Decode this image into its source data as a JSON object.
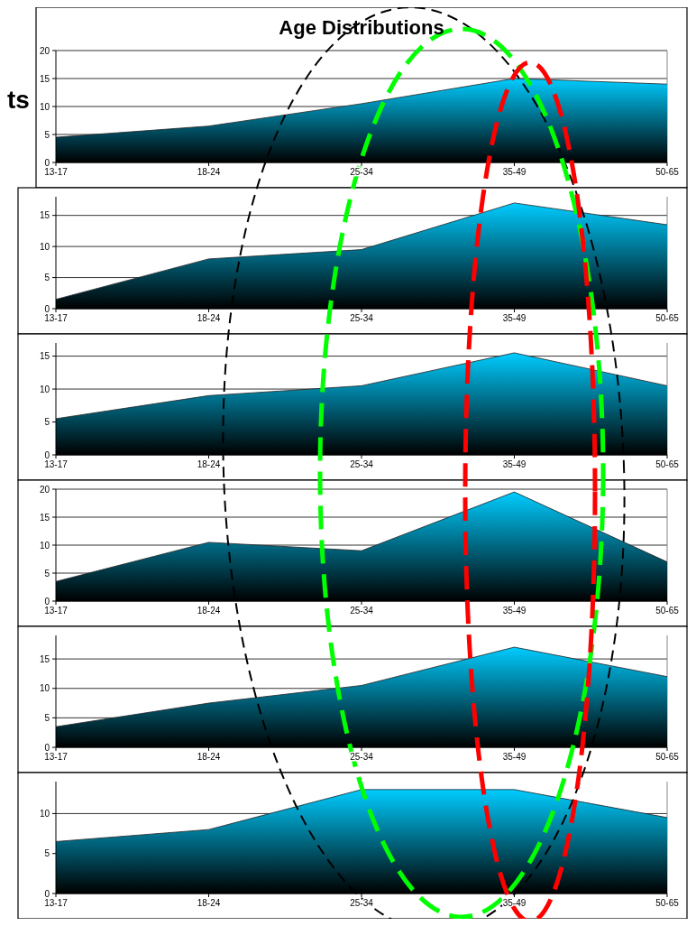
{
  "chart_data": [
    {
      "type": "area",
      "title": "Age Distributions",
      "annotations": [
        "ts"
      ],
      "categories": [
        "13-17",
        "18-24",
        "25-34",
        "35-49",
        "50-65"
      ],
      "series": [
        {
          "color": "#00ccff",
          "values": [
            4.5,
            6.5,
            10.5,
            15,
            14
          ]
        }
      ],
      "ylim": [
        0,
        20
      ],
      "yticks": [
        0,
        5,
        10,
        15,
        20
      ],
      "grid": "y"
    },
    {
      "type": "area",
      "categories": [
        "13-17",
        "18-24",
        "25-34",
        "35-49",
        "50-65"
      ],
      "series": [
        {
          "color": "#00ccff",
          "values": [
            1.5,
            8,
            9.5,
            17,
            13.5
          ]
        }
      ],
      "ylim": [
        0,
        18
      ],
      "yticks": [
        0,
        5,
        10,
        15
      ],
      "grid": "y"
    },
    {
      "type": "area",
      "categories": [
        "13-17",
        "18-24",
        "25-34",
        "35-49",
        "50-65"
      ],
      "series": [
        {
          "color": "#00ccff",
          "values": [
            5.5,
            9,
            10.5,
            15.5,
            10.5
          ]
        }
      ],
      "ylim": [
        0,
        17
      ],
      "yticks": [
        0,
        5,
        10,
        15
      ],
      "grid": "y"
    },
    {
      "type": "area",
      "categories": [
        "13-17",
        "18-24",
        "25-34",
        "35-49",
        "50-65"
      ],
      "series": [
        {
          "color": "#00ccff",
          "values": [
            3.5,
            10.5,
            9,
            19.5,
            7
          ]
        }
      ],
      "ylim": [
        0,
        20
      ],
      "yticks": [
        0,
        5,
        10,
        15,
        20
      ],
      "grid": "y"
    },
    {
      "type": "area",
      "categories": [
        "13-17",
        "18-24",
        "25-34",
        "35-49",
        "50-65"
      ],
      "series": [
        {
          "color": "#00ccff",
          "values": [
            3.5,
            7.5,
            10.5,
            17,
            12
          ]
        }
      ],
      "ylim": [
        0,
        19
      ],
      "yticks": [
        0,
        5,
        10,
        15
      ],
      "grid": "y"
    },
    {
      "type": "area",
      "categories": [
        "13-17",
        "18-24",
        "25-34",
        "35-49",
        "50-65"
      ],
      "series": [
        {
          "color": "#00ccff",
          "values": [
            6.5,
            8,
            13,
            13,
            9.5
          ]
        }
      ],
      "ylim": [
        0,
        14
      ],
      "yticks": [
        0,
        5,
        10
      ],
      "grid": "y"
    }
  ]
}
